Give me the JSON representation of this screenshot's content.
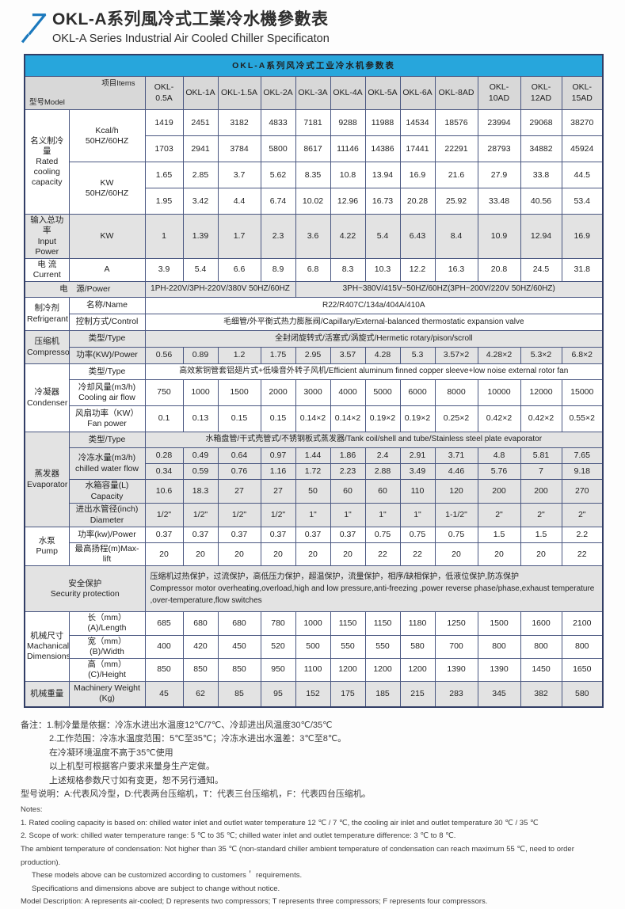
{
  "colors": {
    "accent": "#27a6dc",
    "logo": "#1b79bd",
    "border": "#4a5781",
    "border_dark": "#323e66",
    "header_gray": "#d8d8d8",
    "row_gray": "#e3e3e3",
    "text": "#1f1f1f"
  },
  "header": {
    "title_cn": "OKL-A系列風冷式工業冷水機參數表",
    "title_en": "OKL-A Series Industrial Air Cooled Chiller Specificaton"
  },
  "table": {
    "title": "OKL-A系列风冷式工业冷水机参数表",
    "corner_model": "型号Model",
    "corner_items": "项目Items",
    "models": [
      "OKL-0.5A",
      "OKL-1A",
      "OKL-1.5A",
      "OKL-2A",
      "OKL-3A",
      "OKL-4A",
      "OKL-5A",
      "OKL-6A",
      "OKL-8AD",
      "OKL-10AD",
      "OKL-12AD",
      "OKL-15AD"
    ],
    "rows": [
      {
        "cells": [
          {
            "t": "名义制冷量\nRated\ncooling\ncapacity",
            "rs": 4,
            "k": "cat"
          },
          {
            "t": "Kcal/h\n50HZ/60HZ",
            "rs": 2,
            "k": "item"
          },
          "1419",
          "2451",
          "3182",
          "4833",
          "7181",
          "9288",
          "11988",
          "14534",
          "18576",
          "23994",
          "29068",
          "38270"
        ]
      },
      {
        "cells": [
          "1703",
          "2941",
          "3784",
          "5800",
          "8617",
          "11146",
          "14386",
          "17441",
          "22291",
          "28793",
          "34882",
          "45924"
        ]
      },
      {
        "cells": [
          {
            "t": "KW\n50HZ/60HZ",
            "rs": 2,
            "k": "item"
          },
          "1.65",
          "2.85",
          "3.7",
          "5.62",
          "8.35",
          "10.8",
          "13.94",
          "16.9",
          "21.6",
          "27.9",
          "33.8",
          "44.5"
        ]
      },
      {
        "cells": [
          "1.95",
          "3.42",
          "4.4",
          "6.74",
          "10.02",
          "12.96",
          "16.73",
          "20.28",
          "25.92",
          "33.48",
          "40.56",
          "53.4"
        ]
      },
      {
        "cells": [
          {
            "t": "输入总功率\nInput Power",
            "k": "cat"
          },
          {
            "t": "KW",
            "k": "item"
          },
          "1",
          "1.39",
          "1.7",
          "2.3",
          "3.6",
          "4.22",
          "5.4",
          "6.43",
          "8.4",
          "10.9",
          "12.94",
          "16.9"
        ]
      },
      {
        "cells": [
          {
            "t": "电 流\nCurrent",
            "k": "cat"
          },
          {
            "t": "A",
            "k": "item"
          },
          "3.9",
          "5.4",
          "6.6",
          "8.9",
          "6.8",
          "8.3",
          "10.3",
          "12.2",
          "16.3",
          "20.8",
          "24.5",
          "31.8"
        ]
      },
      {
        "cells": [
          {
            "t": "电　源/Power",
            "cs": 2,
            "k": "cat"
          },
          {
            "t": "1PH-220V/3PH-220V/380V 50HZ/60HZ",
            "cs": 4,
            "k": "wide"
          },
          {
            "t": "3PH~380V/415V~50HZ/60HZ(3PH~200V/220V  50HZ/60HZ)",
            "cs": 8,
            "k": "wide"
          }
        ]
      },
      {
        "cells": [
          {
            "t": "制冷剂\nRefrigerant",
            "rs": 2,
            "k": "cat"
          },
          {
            "t": "名称/Name",
            "k": "item"
          },
          {
            "t": "R22/R407C/134a/404A/410A",
            "cs": 12,
            "k": "wide"
          }
        ]
      },
      {
        "cells": [
          {
            "t": "控制方式/Control",
            "k": "item"
          },
          {
            "t": "毛细管/外平衡式热力膨胀阀/Capillary/External-balanced thermostatic expansion valve",
            "cs": 12,
            "k": "wide"
          }
        ]
      },
      {
        "cells": [
          {
            "t": "压缩机\nCompressor",
            "rs": 2,
            "k": "cat"
          },
          {
            "t": "类型/Type",
            "k": "item"
          },
          {
            "t": "全封闭旋转式/活塞式/涡旋式/Hermetic rotary/pison/scroll",
            "cs": 12,
            "k": "wide"
          }
        ]
      },
      {
        "cells": [
          {
            "t": "功率(KW)/Power",
            "k": "item"
          },
          "0.56",
          "0.89",
          "1.2",
          "1.75",
          "2.95",
          "3.57",
          "4.28",
          "5.3",
          "3.57×2",
          "4.28×2",
          "5.3×2",
          "6.8×2"
        ]
      },
      {
        "cells": [
          {
            "t": "冷凝器\nCondenser",
            "rs": 3,
            "k": "cat"
          },
          {
            "t": "类型/Type",
            "k": "item"
          },
          {
            "t": "高效紫铜管套铝翅片式+低噪音外转子风机/Efficient aluminum finned copper sleeve+low noise external rotor fan",
            "cs": 12,
            "k": "wide"
          }
        ]
      },
      {
        "cells": [
          {
            "t": "冷却风量(m3/h)\nCooling air flow",
            "k": "item"
          },
          "750",
          "1000",
          "1500",
          "2000",
          "3000",
          "4000",
          "5000",
          "6000",
          "8000",
          "10000",
          "12000",
          "15000"
        ]
      },
      {
        "cells": [
          {
            "t": "风扇功率（KW）\nFan power",
            "k": "item"
          },
          "0.1",
          "0.13",
          "0.15",
          "0.15",
          "0.14×2",
          "0.14×2",
          "0.19×2",
          "0.19×2",
          "0.25×2",
          "0.42×2",
          "0.42×2",
          "0.55×2"
        ]
      },
      {
        "cells": [
          {
            "t": "蒸发器\nEvaporator",
            "rs": 5,
            "k": "cat"
          },
          {
            "t": "类型/Type",
            "k": "item"
          },
          {
            "t": "水箱盘管/干式壳管式/不锈钢板式蒸发器/Tank coil/shell and tube/Stainless steel plate evaporator",
            "cs": 12,
            "k": "wide"
          }
        ]
      },
      {
        "cells": [
          {
            "t": "冷冻水量(m3/h)\nchilled water flow",
            "rs": 2,
            "k": "item"
          },
          "0.28",
          "0.49",
          "0.64",
          "0.97",
          "1.44",
          "1.86",
          "2.4",
          "2.91",
          "3.71",
          "4.8",
          "5.81",
          "7.65"
        ]
      },
      {
        "cells": [
          "0.34",
          "0.59",
          "0.76",
          "1.16",
          "1.72",
          "2.23",
          "2.88",
          "3.49",
          "4.46",
          "5.76",
          "7",
          "9.18"
        ]
      },
      {
        "cells": [
          {
            "t": "水箱容量(L)\nCapacity",
            "k": "item"
          },
          "10.6",
          "18.3",
          "27",
          "27",
          "50",
          "60",
          "60",
          "110",
          "120",
          "200",
          "200",
          "270"
        ]
      },
      {
        "cells": [
          {
            "t": "进出水管径(inch)\nDiameter",
            "k": "item"
          },
          "1/2\"",
          "1/2\"",
          "1/2\"",
          "1/2\"",
          "1\"",
          "1\"",
          "1\"",
          "1\"",
          "1-1/2\"",
          "2\"",
          "2\"",
          "2\""
        ]
      },
      {
        "cells": [
          {
            "t": "水泵\nPump",
            "rs": 2,
            "k": "cat"
          },
          {
            "t": "功率(kw)/Power",
            "k": "item"
          },
          "0.37",
          "0.37",
          "0.37",
          "0.37",
          "0.37",
          "0.37",
          "0.75",
          "0.75",
          "0.75",
          "1.5",
          "1.5",
          "2.2"
        ]
      },
      {
        "cells": [
          {
            "t": "最高扬程(m)Max-lift",
            "k": "item"
          },
          "20",
          "20",
          "20",
          "20",
          "20",
          "20",
          "22",
          "22",
          "20",
          "20",
          "20",
          "22"
        ]
      },
      {
        "cells": [
          {
            "t": "安全保护\nSecurity protection",
            "cs": 2,
            "k": "cat"
          },
          {
            "t": "压缩机过热保护，过流保护，高低压力保护，超温保护，流量保护，相序/缺相保护，低液位保护,防冻保护\nCompressor motor overheating,overload,high and low pressure,anti-freezing ,power reverse phase/phase,exhaust temperature ,over-temperature,flow switches",
            "cs": 12,
            "k": "secu"
          }
        ]
      },
      {
        "cells": [
          {
            "t": "机械尺寸\nMachanical\nDimensions",
            "rs": 3,
            "k": "cat"
          },
          {
            "t": "长（mm）(A)/Length",
            "k": "item"
          },
          "685",
          "680",
          "680",
          "780",
          "1000",
          "1150",
          "1150",
          "1180",
          "1250",
          "1500",
          "1600",
          "2100"
        ]
      },
      {
        "cells": [
          {
            "t": "宽（mm）(B)/Width",
            "k": "item"
          },
          "400",
          "420",
          "450",
          "520",
          "500",
          "550",
          "550",
          "580",
          "700",
          "800",
          "800",
          "800"
        ]
      },
      {
        "cells": [
          {
            "t": "高（mm）(C)/Height",
            "k": "item"
          },
          "850",
          "850",
          "850",
          "950",
          "1100",
          "1200",
          "1200",
          "1200",
          "1390",
          "1390",
          "1450",
          "1650"
        ]
      },
      {
        "cells": [
          {
            "t": "机械重量",
            "k": "cat"
          },
          {
            "t": "Machinery Weight\n(Kg)",
            "k": "item"
          },
          "45",
          "62",
          "85",
          "95",
          "152",
          "175",
          "185",
          "215",
          "283",
          "345",
          "382",
          "580"
        ]
      }
    ]
  },
  "notes_cn": [
    {
      "t": "备注：1.制冷量是依据：冷冻水进出水温度12℃/7℃、冷却进出风温度30℃/35℃",
      "ind": 0
    },
    {
      "t": "2.工作范围：冷冻水温度范围：5℃至35℃；冷冻水进出水温差：3℃至8℃。",
      "ind": 1
    },
    {
      "t": "在冷凝环境温度不高于35℃使用",
      "ind": 1
    },
    {
      "t": "以上机型可根据客户要求来量身生产定做。",
      "ind": 1
    },
    {
      "t": "上述规格参数尺寸如有变更，恕不另行通知。",
      "ind": 1
    },
    {
      "t": "型号说明：A:代表风冷型，D:代表两台压缩机，T：代表三台压缩机，F：代表四台压缩机。",
      "ind": 0
    }
  ],
  "notes_en": [
    {
      "t": "Notes:",
      "ind": 0
    },
    {
      "t": "1. Rated cooling capacity is based on: chilled water inlet and outlet water temperature 12 ℃ / 7 ℃, the cooling air inlet and outlet temperature 30 ℃ / 35 ℃",
      "ind": 0
    },
    {
      "t": "2. Scope of work: chilled water temperature range: 5 ℃ to 35 ℃; chilled water inlet and outlet temperature difference: 3 ℃ to 8 ℃.",
      "ind": 0
    },
    {
      "t": "The ambient temperature of condensation: Not higher than 35 ℃ (non-standard chiller ambient temperature of condensation can reach maximum 55 ℃, need to order production).",
      "ind": 0
    },
    {
      "t": "These models above can be customized according to customers＇ requirements.",
      "ind": 1
    },
    {
      "t": "Specifications and dimensions above are subject to change without notice.",
      "ind": 1
    },
    {
      "t": "Model Description: A represents air-cooled; D represents two compressors; T represents three compressors; F represents four compressors.",
      "ind": 0
    }
  ]
}
